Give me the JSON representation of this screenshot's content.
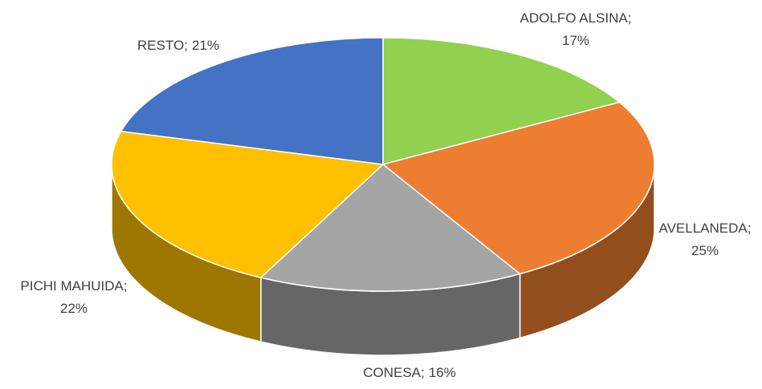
{
  "chart_data": {
    "type": "pie3d",
    "categories": [
      "ADOLFO ALSINA",
      "AVELLANEDA",
      "CONESA",
      "PICHI MAHUIDA",
      "RESTO"
    ],
    "values": [
      17,
      25,
      16,
      22,
      21
    ],
    "value_labels": [
      "17%",
      "25%",
      "16%",
      "22%",
      "21%"
    ],
    "label_separator": ";",
    "colors": [
      "#92d050",
      "#ed7d31",
      "#a5a5a5",
      "#ffc000",
      "#4472c4"
    ]
  }
}
